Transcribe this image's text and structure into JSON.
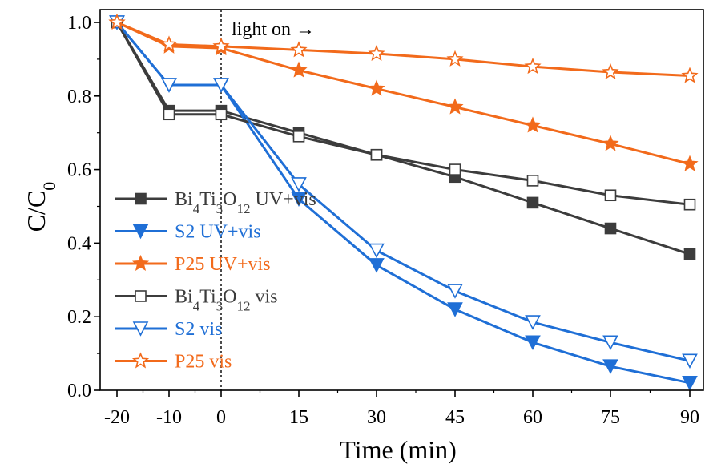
{
  "chart_data": {
    "type": "line",
    "xlabel": "Time (min)",
    "ylabel_main": "C/C",
    "ylabel_sub": "0",
    "x_ticks": [
      -20,
      -10,
      0,
      15,
      30,
      45,
      60,
      75,
      90
    ],
    "x_tick_labels": [
      "-20",
      "-10",
      "0",
      "15",
      "30",
      "45",
      "60",
      "75",
      "90"
    ],
    "y_ticks": [
      0.0,
      0.2,
      0.4,
      0.6,
      0.8,
      1.0
    ],
    "y_tick_labels": [
      "0.0",
      "0.2",
      "0.4",
      "0.6",
      "0.8",
      "1.0"
    ],
    "ylim": [
      0.0,
      1.03
    ],
    "annotation": "light on",
    "annotation_arrow": "→",
    "light_on_x": 0,
    "grid": false,
    "legend_placement": "left",
    "series": [
      {
        "name": "Bi₄Ti₃O₁₂ UV+vis",
        "name_parts": [
          [
            "Bi",
            ""
          ],
          [
            "4",
            "sub"
          ],
          [
            "Ti",
            ""
          ],
          [
            "3",
            "sub"
          ],
          [
            "O",
            ""
          ],
          [
            "12",
            "sub"
          ],
          [
            " UV+vis",
            ""
          ]
        ],
        "color": "#3c3c3c",
        "marker": "square-filled",
        "x": [
          -20,
          -10,
          0,
          15,
          30,
          45,
          60,
          75,
          90
        ],
        "y": [
          1.0,
          0.76,
          0.76,
          0.7,
          0.64,
          0.58,
          0.51,
          0.44,
          0.37
        ]
      },
      {
        "name": "S2 UV+vis",
        "color": "#1f6fd6",
        "marker": "triangle-down-filled",
        "x": [
          -20,
          -10,
          0,
          15,
          30,
          45,
          60,
          75,
          90
        ],
        "y": [
          1.0,
          0.83,
          0.83,
          0.52,
          0.34,
          0.22,
          0.13,
          0.065,
          0.02
        ]
      },
      {
        "name": "P25 UV+vis",
        "color": "#f26a1b",
        "marker": "star-filled",
        "x": [
          -20,
          -10,
          0,
          15,
          30,
          45,
          60,
          75,
          90
        ],
        "y": [
          1.0,
          0.935,
          0.93,
          0.87,
          0.82,
          0.77,
          0.72,
          0.67,
          0.615
        ]
      },
      {
        "name": "Bi₄Ti₃O₁₂ vis",
        "name_parts": [
          [
            "Bi",
            ""
          ],
          [
            "4",
            "sub"
          ],
          [
            "Ti",
            ""
          ],
          [
            "3",
            "sub"
          ],
          [
            "O",
            ""
          ],
          [
            "12",
            "sub"
          ],
          [
            " vis",
            ""
          ]
        ],
        "color": "#3c3c3c",
        "marker": "square-open",
        "x": [
          -20,
          -10,
          0,
          15,
          30,
          45,
          60,
          75,
          90
        ],
        "y": [
          1.0,
          0.75,
          0.75,
          0.69,
          0.64,
          0.6,
          0.57,
          0.53,
          0.505
        ]
      },
      {
        "name": "S2 vis",
        "color": "#1f6fd6",
        "marker": "triangle-down-open",
        "x": [
          -20,
          -10,
          0,
          15,
          30,
          45,
          60,
          75,
          90
        ],
        "y": [
          1.0,
          0.83,
          0.83,
          0.56,
          0.38,
          0.27,
          0.185,
          0.13,
          0.08
        ]
      },
      {
        "name": "P25 vis",
        "color": "#f26a1b",
        "marker": "star-open",
        "x": [
          -20,
          -10,
          0,
          15,
          30,
          45,
          60,
          75,
          90
        ],
        "y": [
          1.0,
          0.94,
          0.935,
          0.925,
          0.915,
          0.9,
          0.88,
          0.865,
          0.855
        ]
      }
    ]
  }
}
